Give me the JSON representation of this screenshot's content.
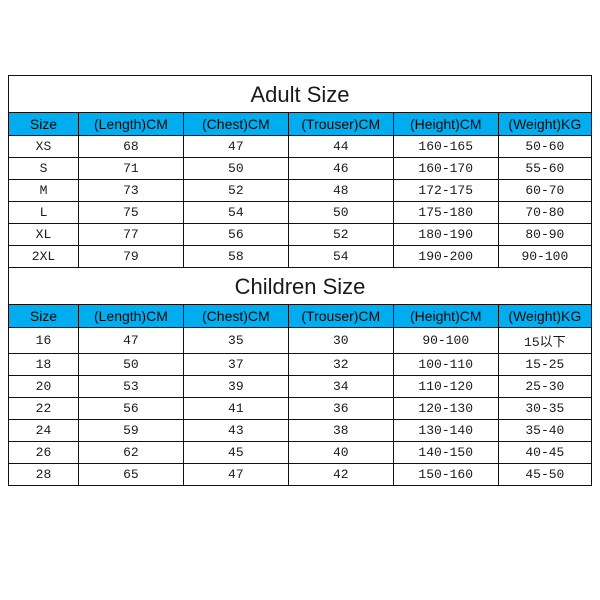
{
  "adult": {
    "title": "Adult Size",
    "columns": [
      "Size",
      "(Length)CM",
      "(Chest)CM",
      "(Trouser)CM",
      "(Height)CM",
      "(Weight)KG"
    ],
    "col_widths": [
      "12%",
      "18%",
      "18%",
      "18%",
      "18%",
      "16%"
    ],
    "header_bg": "#00AEEF",
    "header_fontsize": 14,
    "title_fontsize": 22,
    "cell_fontsize": 13,
    "border_color": "#111111",
    "rows": [
      [
        "XS",
        "68",
        "47",
        "44",
        "160-165",
        "50-60"
      ],
      [
        "S",
        "71",
        "50",
        "46",
        "160-170",
        "55-60"
      ],
      [
        "M",
        "73",
        "52",
        "48",
        "172-175",
        "60-70"
      ],
      [
        "L",
        "75",
        "54",
        "50",
        "175-180",
        "70-80"
      ],
      [
        "XL",
        "77",
        "56",
        "52",
        "180-190",
        "80-90"
      ],
      [
        "2XL",
        "79",
        "58",
        "54",
        "190-200",
        "90-100"
      ]
    ]
  },
  "children": {
    "title": "Children Size",
    "columns": [
      "Size",
      "(Length)CM",
      "(Chest)CM",
      "(Trouser)CM",
      "(Height)CM",
      "(Weight)KG"
    ],
    "col_widths": [
      "12%",
      "18%",
      "18%",
      "18%",
      "18%",
      "16%"
    ],
    "header_bg": "#00AEEF",
    "header_fontsize": 14,
    "title_fontsize": 22,
    "cell_fontsize": 13,
    "border_color": "#111111",
    "rows": [
      [
        "16",
        "47",
        "35",
        "30",
        "90-100",
        "15以下"
      ],
      [
        "18",
        "50",
        "37",
        "32",
        "100-110",
        "15-25"
      ],
      [
        "20",
        "53",
        "39",
        "34",
        "110-120",
        "25-30"
      ],
      [
        "22",
        "56",
        "41",
        "36",
        "120-130",
        "30-35"
      ],
      [
        "24",
        "59",
        "43",
        "38",
        "130-140",
        "35-40"
      ],
      [
        "26",
        "62",
        "45",
        "40",
        "140-150",
        "40-45"
      ],
      [
        "28",
        "65",
        "47",
        "42",
        "150-160",
        "45-50"
      ]
    ]
  }
}
